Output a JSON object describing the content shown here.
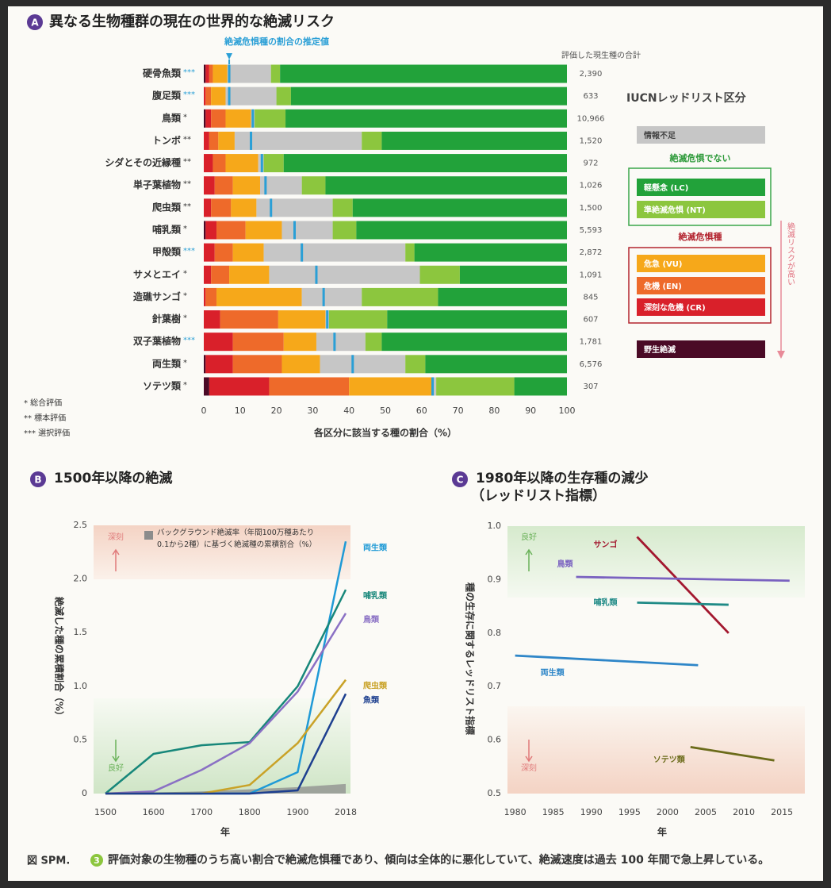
{
  "chart_data": [
    {
      "type": "bar",
      "panel": "A",
      "title": "異なる生物種群の現在の世界的な絶滅リスク",
      "categories": [
        "硬骨魚類",
        "腹足類",
        "鳥類",
        "トンボ",
        "シダとその近縁種",
        "単子葉植物",
        "爬虫類",
        "哺乳類",
        "甲殻類",
        "サメとエイ",
        "造礁サンゴ",
        "針葉樹",
        "双子葉植物",
        "両生類",
        "ソテツ類"
      ],
      "assessment": [
        "***",
        "***",
        "*",
        "**",
        "**",
        "**",
        "**",
        "*",
        "***",
        "*",
        "*",
        "*",
        "***",
        "*",
        "*"
      ],
      "series": [
        {
          "name": "野生絶滅",
          "color": "#4a0a26",
          "values": [
            0.5,
            0,
            0.5,
            0,
            0,
            0,
            0,
            0.5,
            0,
            0,
            0,
            0,
            0,
            0.5,
            1.5
          ]
        },
        {
          "name": "深刻な危機 (CR)",
          "color": "#d9202a",
          "values": [
            1,
            0.5,
            1.5,
            1.5,
            2.5,
            3,
            2,
            3,
            3,
            2,
            0.5,
            4.5,
            8,
            7.5,
            16.5
          ]
        },
        {
          "name": "危機 (EN)",
          "color": "#ee6a2a",
          "values": [
            1,
            1.5,
            4,
            2.5,
            3.5,
            5,
            5.5,
            8,
            5,
            5,
            3,
            16,
            14,
            13.5,
            22
          ]
        },
        {
          "name": "危急 (VU)",
          "color": "#f6a81a",
          "values": [
            4,
            4,
            7,
            4.5,
            9,
            7.5,
            7,
            10,
            8.5,
            11,
            23.5,
            13,
            9,
            10.5,
            23
          ]
        },
        {
          "name": "情報不足",
          "color": "#c6c6c6",
          "values": [
            12,
            14,
            1,
            35,
            1.5,
            11.5,
            21,
            14,
            39,
            41.5,
            16.5,
            1,
            13.5,
            23.5,
            1
          ]
        },
        {
          "name": "準絶滅危惧 (NT)",
          "color": "#8cc63e",
          "values": [
            2.5,
            4,
            8.5,
            5.5,
            5.5,
            6.5,
            5.5,
            6.5,
            2.5,
            11,
            21,
            16,
            4.5,
            5.5,
            21.5
          ]
        },
        {
          "name": "軽懸念 (LC)",
          "color": "#22a23a",
          "values": [
            79,
            76,
            77.5,
            51,
            78,
            66.5,
            59,
            58,
            42,
            29.5,
            35.5,
            49.5,
            51,
            39,
            14.5
          ]
        }
      ],
      "estimate": {
        "name": "絶滅危惧種の割合の推定値",
        "color": "#2a9fd6",
        "values": [
          7,
          7,
          13.5,
          13,
          16,
          17,
          18.5,
          25,
          27,
          31,
          33,
          34,
          36,
          41,
          63
        ]
      },
      "totals_title": "評価した現生種の合計",
      "totals": [
        "2,390",
        "633",
        "10,966",
        "1,520",
        "972",
        "1,026",
        "1,500",
        "5,593",
        "2,872",
        "1,091",
        "845",
        "607",
        "1,781",
        "6,576",
        "307"
      ],
      "xlabel": "各区分に該当する種の割合（%）",
      "xlim": [
        0,
        100
      ],
      "xticks": [
        0,
        10,
        20,
        30,
        40,
        50,
        60,
        70,
        80,
        90,
        100
      ],
      "legend_title": "IUCNレッドリスト区分",
      "legend_groups": [
        "絶滅危惧でない",
        "絶滅危惧種"
      ],
      "risk_label": "絶滅リスクが高い",
      "notes": [
        "* 総合評価",
        "** 標本評価",
        "*** 選択評価"
      ]
    },
    {
      "type": "line",
      "panel": "B",
      "title": "1500年以降の絶滅",
      "categories": [
        1500,
        1600,
        1700,
        1800,
        1900,
        2018
      ],
      "series": [
        {
          "name": "両生類",
          "color": "#1f9ad6",
          "values": [
            0,
            0,
            0,
            0,
            0.2,
            2.35
          ]
        },
        {
          "name": "哺乳類",
          "color": "#17877a",
          "values": [
            0,
            0.37,
            0.45,
            0.48,
            1.0,
            1.9
          ]
        },
        {
          "name": "鳥類",
          "color": "#8a70c4",
          "values": [
            0,
            0.02,
            0.22,
            0.47,
            0.95,
            1.68
          ]
        },
        {
          "name": "爬虫類",
          "color": "#c9a227",
          "values": [
            0,
            0,
            0,
            0.08,
            0.47,
            1.06
          ]
        },
        {
          "name": "魚類",
          "color": "#1d3f8f",
          "values": [
            0,
            0,
            0,
            0,
            0.03,
            0.93
          ]
        }
      ],
      "background": {
        "name": "バックグラウンド絶滅率（年間100万種あたり0.1から2種）に基づく絶滅種の累積割合（%）",
        "color": "#8c8c8c",
        "values": [
          0,
          0.01,
          0.02,
          0.04,
          0.06,
          0.09
        ]
      },
      "ylabel": "絶滅した種の累積割合（%）",
      "xlabel": "年",
      "ylim": [
        0,
        2.5
      ],
      "yticks": [
        0,
        0.5,
        {
          "value": 1,
          "label": "1.0"
        },
        1.5,
        {
          "value": 2,
          "label": "2.0"
        },
        2.5
      ],
      "annotation_top": "深刻",
      "annotation_bottom": "良好"
    },
    {
      "type": "line",
      "panel": "C",
      "title": "1980年以降の生存種の減少",
      "subtitle": "（レッドリスト指標）",
      "series": [
        {
          "name": "サンゴ",
          "color": "#a3182f",
          "x": [
            1996,
            2008
          ],
          "values": [
            0.98,
            0.8
          ]
        },
        {
          "name": "鳥類",
          "color": "#7a62c0",
          "x": [
            1988,
            2016
          ],
          "values": [
            0.905,
            0.898
          ]
        },
        {
          "name": "哺乳類",
          "color": "#1f8a86",
          "x": [
            1996,
            2008
          ],
          "values": [
            0.857,
            0.853
          ]
        },
        {
          "name": "両生類",
          "color": "#2e86c8",
          "x": [
            1980,
            2004
          ],
          "values": [
            0.758,
            0.74
          ]
        },
        {
          "name": "ソテツ類",
          "color": "#6b6b1a",
          "x": [
            2003,
            2014
          ],
          "values": [
            0.587,
            0.562
          ]
        }
      ],
      "ylabel": "種の生存に関するレッドリスト指標",
      "xlabel": "年",
      "xlim": [
        1979,
        2018
      ],
      "xticks": [
        1980,
        1985,
        1990,
        1995,
        2000,
        2005,
        2010,
        2015
      ],
      "ylim": [
        0.5,
        1
      ],
      "yticks": [
        0.5,
        0.6,
        0.7,
        0.8,
        0.9,
        {
          "value": 1,
          "label": "1.0"
        }
      ],
      "annotation_top": "良好",
      "annotation_bottom": "深刻"
    }
  ],
  "caption": {
    "label": "図 SPM.",
    "number": "3",
    "text": "評価対象の生物種のうち高い割合で絶滅危惧種であり、傾向は全体的に悪化していて、絶滅速度は過去 100 年間で急上昇している。"
  }
}
